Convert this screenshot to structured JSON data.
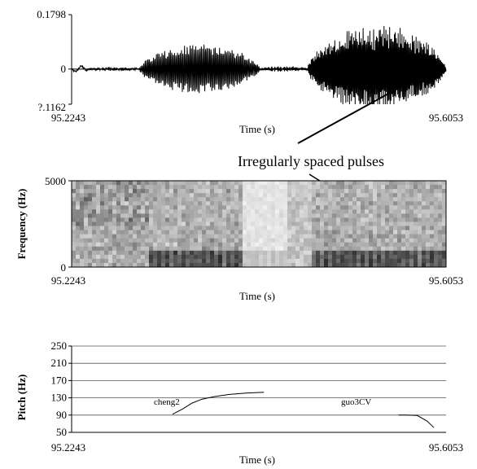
{
  "annotation": "Irregularly spaced pulses",
  "chart_data": [
    {
      "type": "line",
      "panel": "waveform",
      "xlabel": "Time (s)",
      "ylabel": "",
      "xlim": [
        95.2243,
        95.6053
      ],
      "ylim": [
        -0.1162,
        0.1798
      ],
      "x_tick_labels": [
        "95.2243",
        "95.6053"
      ],
      "y_tick_labels": [
        "0.1798",
        "0",
        "?.1162"
      ],
      "segments": [
        {
          "t0": 95.2243,
          "t1": 95.242,
          "amp": 0.012,
          "f": 900
        },
        {
          "t0": 95.242,
          "t1": 95.293,
          "amp": 0.004,
          "f": 400
        },
        {
          "t0": 95.293,
          "t1": 95.416,
          "amp": 0.085,
          "f": 175
        },
        {
          "t0": 95.416,
          "t1": 95.464,
          "amp": 0.008,
          "f": 500
        },
        {
          "t0": 95.464,
          "t1": 95.6053,
          "amp": 0.15,
          "f": 260
        }
      ]
    },
    {
      "type": "heatmap",
      "panel": "spectrogram",
      "xlabel": "Time (s)",
      "ylabel": "Frequency (Hz)",
      "xlim": [
        95.2243,
        95.6053
      ],
      "ylim": [
        0,
        5000
      ],
      "x_tick_labels": [
        "95.2243",
        "95.6053"
      ],
      "y_tick_labels": [
        "5000",
        "0"
      ],
      "colormap": "grayscale"
    },
    {
      "type": "line",
      "panel": "pitch",
      "xlabel": "Time (s)",
      "ylabel": "Pitch (Hz)",
      "xlim": [
        95.2243,
        95.6053
      ],
      "ylim": [
        50,
        250
      ],
      "yticks": [
        50,
        90,
        130,
        170,
        210,
        250
      ],
      "x_tick_labels": [
        "95.2243",
        "95.6053"
      ],
      "grid": true,
      "series": [
        {
          "name": "cheng2",
          "x": [
            95.327,
            95.337,
            95.347,
            95.357,
            95.37,
            95.385,
            95.402,
            95.42
          ],
          "y": [
            92,
            104,
            118,
            127,
            133,
            138,
            141,
            143
          ]
        },
        {
          "name": "guo3CV",
          "x": [
            95.557,
            95.565,
            95.576,
            95.586,
            95.593
          ],
          "y": [
            90,
            90,
            89,
            76,
            61
          ]
        }
      ]
    }
  ],
  "colors": {
    "line": "#000000",
    "grid": "#555555",
    "background": "#ffffff"
  }
}
